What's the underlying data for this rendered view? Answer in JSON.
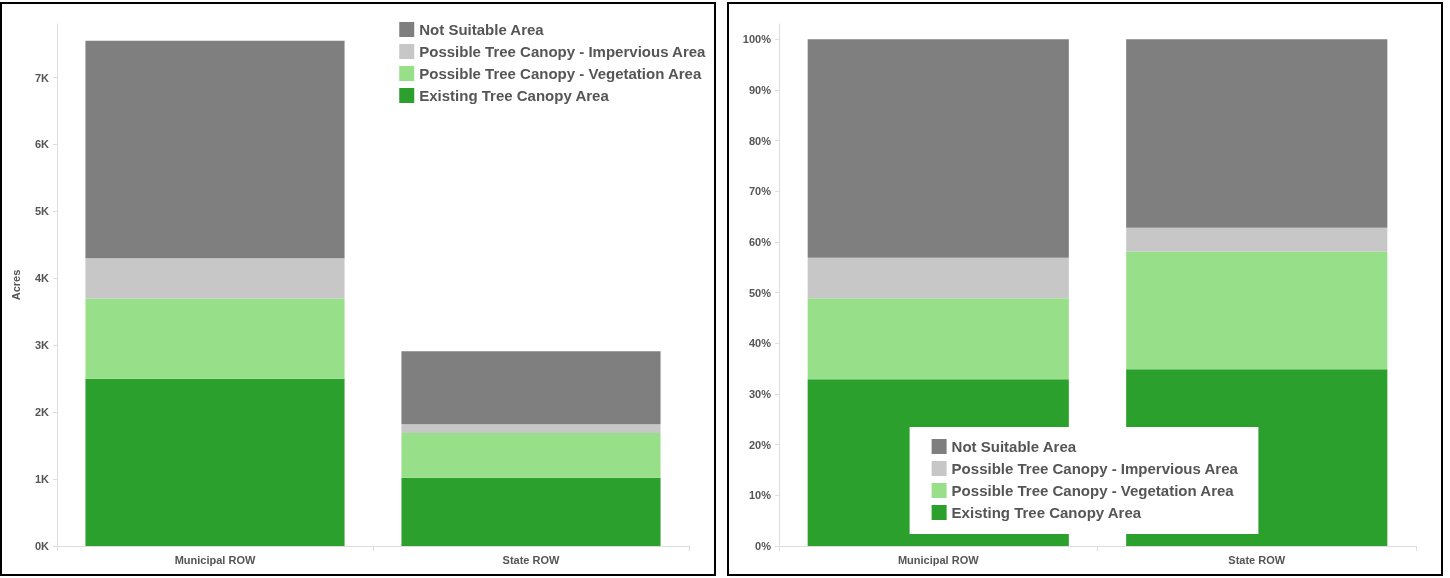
{
  "chart_data": [
    {
      "type": "bar",
      "stacked": true,
      "categories": [
        "Municipal ROW",
        "State ROW"
      ],
      "ylabel": "Acres",
      "ylim": [
        0,
        7800
      ],
      "yticks": [
        {
          "value": 0,
          "label": "0K"
        },
        {
          "value": 1000,
          "label": "1K"
        },
        {
          "value": 2000,
          "label": "2K"
        },
        {
          "value": 3000,
          "label": "3K"
        },
        {
          "value": 4000,
          "label": "4K"
        },
        {
          "value": 5000,
          "label": "5K"
        },
        {
          "value": 6000,
          "label": "6K"
        },
        {
          "value": 7000,
          "label": "7K"
        }
      ],
      "series": [
        {
          "name": "Existing Tree Canopy Area",
          "color": "#2ca02c",
          "values": [
            2500,
            1020
          ]
        },
        {
          "name": "Possible Tree Canopy - Vegetation Area",
          "color": "#98df8a",
          "values": [
            1200,
            670
          ]
        },
        {
          "name": "Possible Tree Canopy - Impervious Area",
          "color": "#c7c7c7",
          "values": [
            600,
            130
          ]
        },
        {
          "name": "Not Suitable Area",
          "color": "#7f7f7f",
          "values": [
            3250,
            1090
          ]
        }
      ],
      "legend": "top right",
      "grid": false
    },
    {
      "type": "bar",
      "stacked": true,
      "categories": [
        "Municipal ROW",
        "State ROW"
      ],
      "ylim": [
        0,
        103
      ],
      "yticks": [
        {
          "value": 0,
          "label": "0%"
        },
        {
          "value": 10,
          "label": "10%"
        },
        {
          "value": 20,
          "label": "20%"
        },
        {
          "value": 30,
          "label": "30%"
        },
        {
          "value": 40,
          "label": "40%"
        },
        {
          "value": 50,
          "label": "50%"
        },
        {
          "value": 60,
          "label": "60%"
        },
        {
          "value": 70,
          "label": "70%"
        },
        {
          "value": 80,
          "label": "80%"
        },
        {
          "value": 90,
          "label": "90%"
        },
        {
          "value": 100,
          "label": "100%"
        }
      ],
      "series": [
        {
          "name": "Existing Tree Canopy Area",
          "color": "#2ca02c",
          "values": [
            32.9,
            34.9
          ]
        },
        {
          "name": "Possible Tree Canopy - Vegetation Area",
          "color": "#98df8a",
          "values": [
            16.0,
            23.2
          ]
        },
        {
          "name": "Possible Tree Canopy - Impervious Area",
          "color": "#c7c7c7",
          "values": [
            8.0,
            4.7
          ]
        },
        {
          "name": "Not Suitable Area",
          "color": "#7f7f7f",
          "values": [
            43.1,
            37.2
          ]
        }
      ],
      "legend": "bottom",
      "grid": false
    }
  ]
}
